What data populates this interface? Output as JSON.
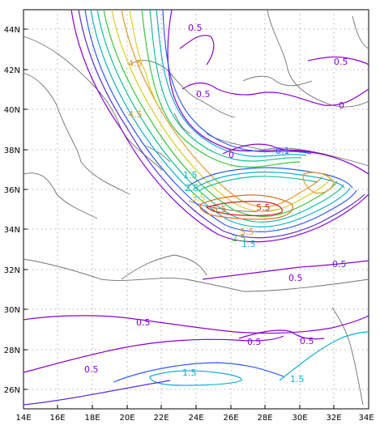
{
  "map": {
    "x_ticks": [
      "14E",
      "16E",
      "18E",
      "20E",
      "22E",
      "24E",
      "26E",
      "28E",
      "30E",
      "32E",
      "34E"
    ],
    "y_ticks": [
      "44N",
      "42N",
      "40N",
      "38N",
      "36N",
      "34N",
      "32N",
      "30N",
      "28N",
      "26N"
    ],
    "contour_labels": [
      "0.5",
      "0.5",
      "0.5",
      "0.5",
      "0",
      "0",
      "0.1",
      "4.5",
      "2.5",
      "1.5",
      "3.5",
      "5.5",
      "5.5",
      "5.5",
      "4.5",
      "2.5",
      "1.5",
      "0.5",
      "0.5",
      "0.5",
      "0.5",
      "0.5",
      "1.5",
      "1.5"
    ],
    "colors": {
      "purple": "#8a00d4",
      "violet": "#5a2bd8",
      "blue": "#2d5bff",
      "cyan": "#11b0cf",
      "teal": "#11c09a",
      "green": "#3ac83a",
      "yellow": "#d7cf22",
      "orange": "#e39a2c",
      "darkorange": "#e46f1f",
      "red": "#d11f1f"
    }
  }
}
